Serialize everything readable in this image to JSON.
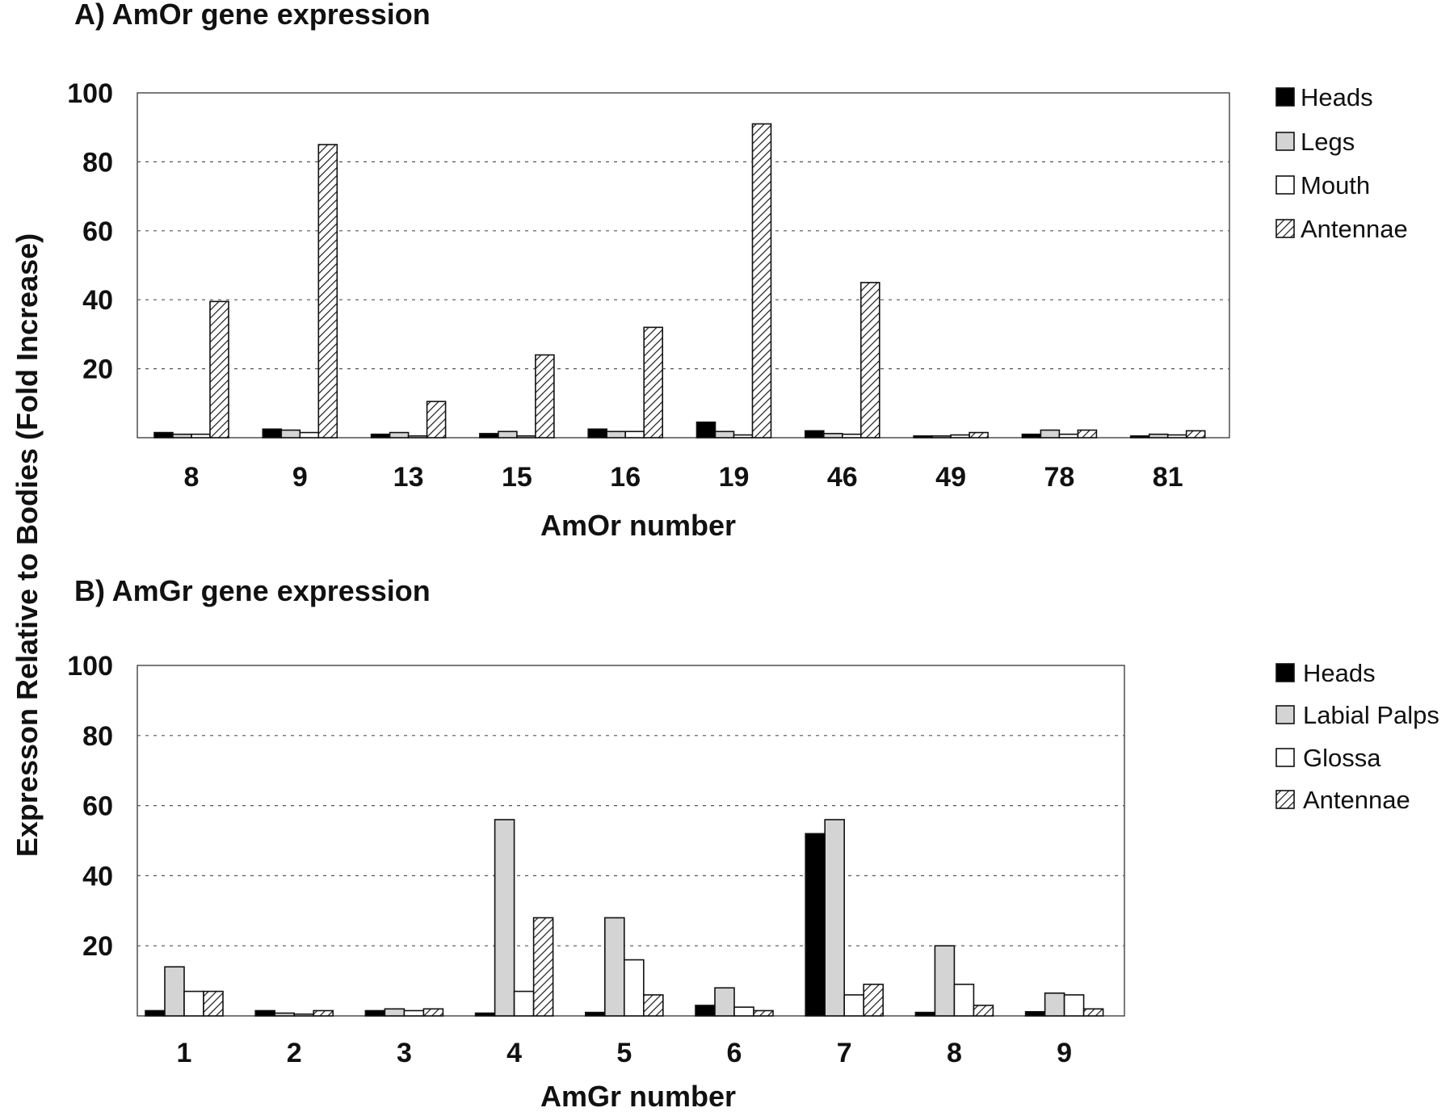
{
  "y_axis_title": "Expresson Relative to Bodies (Fold Increase)",
  "colors": {
    "heads": "#000000",
    "legs": "#d4d4d4",
    "white": "#ffffff",
    "hatch": "#1a1a1a",
    "grid": "#555555"
  },
  "chart_data": [
    {
      "type": "bar",
      "title": "A) AmOr gene expression",
      "xlabel": "AmOr number",
      "ylabel": "Expresson Relative to Bodies (Fold Increase)",
      "ylim": [
        0,
        100
      ],
      "yticks": [
        "100",
        "80",
        "60",
        "40",
        "20"
      ],
      "grid": "dashed horizontal",
      "legend_position": "right",
      "categories": [
        "8",
        "9",
        "13",
        "15",
        "16",
        "19",
        "46",
        "49",
        "78",
        "81"
      ],
      "series": [
        {
          "name": "Heads",
          "fill": "solid-black",
          "values": [
            1.5,
            2.5,
            1,
            1.2,
            2.5,
            4.5,
            2,
            0.5,
            1,
            0.5
          ]
        },
        {
          "name": "Legs",
          "fill": "gray",
          "values": [
            1,
            2.2,
            1.5,
            1.8,
            1.8,
            1.8,
            1.2,
            0.5,
            2.2,
            1
          ]
        },
        {
          "name": "Mouth",
          "fill": "white",
          "values": [
            1,
            1.5,
            0.5,
            0.5,
            1.8,
            0.8,
            1,
            0.8,
            1,
            0.8
          ]
        },
        {
          "name": "Antennae",
          "fill": "hatched",
          "values": [
            39.5,
            85,
            10.5,
            24,
            32,
            91,
            45,
            1.5,
            2.2,
            2
          ]
        }
      ]
    },
    {
      "type": "bar",
      "title": "B) AmGr gene expression",
      "xlabel": "AmGr number",
      "ylabel": "Expresson Relative to Bodies (Fold Increase)",
      "ylim": [
        0,
        100
      ],
      "yticks": [
        "100",
        "80",
        "60",
        "40",
        "20"
      ],
      "grid": "dashed horizontal",
      "legend_position": "right",
      "categories": [
        "1",
        "2",
        "3",
        "4",
        "5",
        "6",
        "7",
        "8",
        "9"
      ],
      "series": [
        {
          "name": "Heads",
          "fill": "solid-black",
          "values": [
            1.5,
            1.5,
            1.5,
            0.8,
            1,
            3,
            52,
            1,
            1.2
          ]
        },
        {
          "name": "Labial Palps",
          "fill": "gray",
          "values": [
            14,
            0.8,
            2,
            56,
            28,
            8,
            56,
            20,
            6.5
          ]
        },
        {
          "name": "Glossa",
          "fill": "white",
          "values": [
            7,
            0.5,
            1.5,
            7,
            16,
            2.5,
            6,
            9,
            6
          ]
        },
        {
          "name": "Antennae",
          "fill": "hatched",
          "values": [
            7,
            1.5,
            2,
            28,
            6,
            1.5,
            9,
            3,
            2
          ]
        }
      ]
    }
  ]
}
